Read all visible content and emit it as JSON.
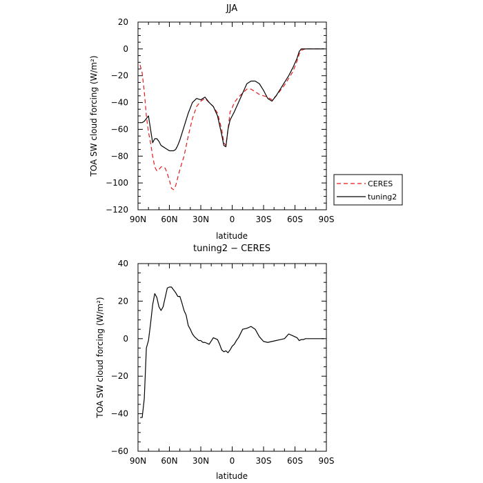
{
  "chart_data": [
    {
      "type": "line",
      "title": "JJA",
      "xlabel": "latitude",
      "ylabel": "TOA SW cloud forcing (W/m²)",
      "x_ticks": [
        90,
        60,
        30,
        0,
        -30,
        -60,
        -90
      ],
      "x_tick_labels": [
        "90N",
        "60N",
        "30N",
        "0",
        "30S",
        "60S",
        "90S"
      ],
      "xlim": [
        90,
        -90
      ],
      "ylim": [
        -120,
        20
      ],
      "y_ticks": [
        20,
        0,
        -20,
        -40,
        -60,
        -80,
        -100,
        -120
      ],
      "y_tick_labels": [
        "20",
        "0",
        "−20",
        "−40",
        "−60",
        "−80",
        "−100",
        "−120"
      ],
      "legend": "right",
      "series": [
        {
          "name": "CERES",
          "color": "#e31a1c",
          "dash": "dashed",
          "x": [
            88,
            86,
            84,
            82,
            80,
            78,
            76,
            74,
            72,
            70,
            68,
            66,
            64,
            62,
            60,
            58,
            56,
            54,
            52,
            50,
            46,
            42,
            38,
            34,
            30,
            26,
            22,
            18,
            14,
            10,
            8,
            6,
            4,
            2,
            0,
            -2,
            -6,
            -10,
            -14,
            -18,
            -22,
            -26,
            -30,
            -34,
            -38,
            -42,
            -46,
            -50,
            -54,
            -58,
            -62,
            -64,
            -66,
            -70,
            -74,
            -78,
            -82,
            -86,
            -88
          ],
          "y": [
            -12,
            -18,
            -32,
            -50,
            -62,
            -70,
            -80,
            -88,
            -91,
            -90,
            -88,
            -88,
            -89,
            -93,
            -98,
            -104,
            -105,
            -102,
            -96,
            -90,
            -80,
            -65,
            -52,
            -43,
            -39,
            -37,
            -40,
            -43,
            -48,
            -60,
            -70,
            -72,
            -60,
            -47,
            -44,
            -40,
            -36,
            -33,
            -30,
            -30,
            -32,
            -34,
            -35,
            -36,
            -38,
            -35,
            -31,
            -27,
            -22,
            -17,
            -9,
            -4,
            -1,
            0,
            0,
            0,
            0,
            0,
            0
          ]
        },
        {
          "name": "tuning2",
          "color": "#000000",
          "dash": "solid",
          "x": [
            88,
            86,
            84,
            82,
            80,
            78,
            76,
            74,
            72,
            70,
            68,
            66,
            64,
            62,
            60,
            58,
            56,
            54,
            52,
            50,
            46,
            42,
            38,
            34,
            30,
            26,
            22,
            18,
            14,
            10,
            8,
            6,
            4,
            2,
            0,
            -2,
            -6,
            -10,
            -14,
            -18,
            -22,
            -26,
            -30,
            -34,
            -38,
            -42,
            -46,
            -50,
            -54,
            -58,
            -62,
            -64,
            -66,
            -70,
            -74,
            -78,
            -82,
            -86,
            -88
          ],
          "y": [
            -55,
            -55,
            -54,
            -52,
            -50,
            -60,
            -70,
            -67,
            -67,
            -69,
            -72,
            -73,
            -74,
            -75,
            -76,
            -76,
            -76,
            -75,
            -72,
            -68,
            -58,
            -48,
            -40,
            -37,
            -38,
            -36,
            -40,
            -43,
            -50,
            -64,
            -72,
            -73,
            -60,
            -53,
            -50,
            -47,
            -40,
            -33,
            -26,
            -24,
            -24,
            -26,
            -31,
            -37,
            -39,
            -35,
            -30,
            -25,
            -20,
            -14,
            -7,
            -2,
            0,
            0,
            0,
            0,
            0,
            0,
            0
          ]
        }
      ]
    },
    {
      "type": "line",
      "title": "tuning2 − CERES",
      "xlabel": "latitude",
      "ylabel": "TOA SW cloud forcing (W/m²)",
      "x_ticks": [
        90,
        60,
        30,
        0,
        -30,
        -60,
        -90
      ],
      "x_tick_labels": [
        "90N",
        "60N",
        "30N",
        "0",
        "30S",
        "60S",
        "90S"
      ],
      "xlim": [
        90,
        -90
      ],
      "ylim": [
        -60,
        40
      ],
      "y_ticks": [
        40,
        20,
        0,
        -20,
        -40,
        -60
      ],
      "y_tick_labels": [
        "40",
        "20",
        "0",
        "−20",
        "−40",
        "−60"
      ],
      "series": [
        {
          "color": "#000000",
          "dash": "solid",
          "x": [
            88,
            86,
            84,
            82,
            80,
            78,
            76,
            74,
            72,
            70,
            68,
            66,
            64,
            62,
            60,
            58,
            56,
            54,
            52,
            50,
            48,
            46,
            44,
            42,
            40,
            38,
            36,
            34,
            32,
            30,
            28,
            26,
            22,
            18,
            14,
            12,
            10,
            8,
            6,
            4,
            2,
            0,
            -2,
            -4,
            -6,
            -10,
            -14,
            -18,
            -22,
            -26,
            -30,
            -34,
            -38,
            -42,
            -46,
            -50,
            -54,
            -58,
            -60,
            -62,
            -64,
            -66,
            -68,
            -70,
            -74,
            -78,
            -82,
            -86,
            -88
          ],
          "y": [
            -42,
            -42,
            -32,
            -5,
            -1,
            8,
            18,
            24,
            22,
            17,
            15,
            17,
            22,
            27,
            27.5,
            27.5,
            26,
            24.5,
            22.5,
            22.5,
            19,
            15,
            12.5,
            7,
            5,
            2.5,
            1,
            0,
            -1,
            -1,
            -2,
            -2,
            -3,
            0.5,
            -0.5,
            -3,
            -6,
            -7,
            -6.5,
            -7.5,
            -6,
            -4,
            -3,
            -1,
            0.5,
            5,
            5.5,
            6.5,
            5,
            1,
            -1.5,
            -2,
            -1.5,
            -1,
            -0.5,
            0,
            2.5,
            1.5,
            1,
            0.5,
            -1,
            -0.5,
            -0.5,
            0,
            0,
            0,
            0,
            0,
            0
          ]
        }
      ]
    }
  ]
}
